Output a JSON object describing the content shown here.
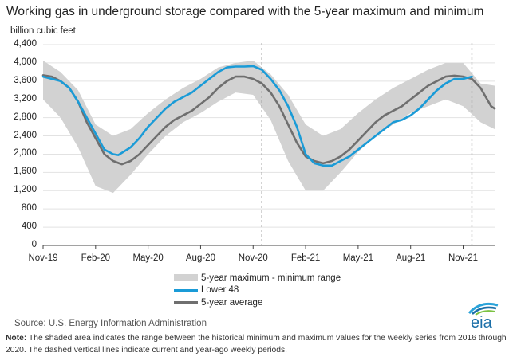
{
  "title": "Working gas in underground  storage compared with the 5-year maximum and minimum",
  "unit_label": "billion cubic feet",
  "source": "Source:  U.S. Energy Information Administration",
  "note_label": "Note:",
  "note_text": " The shaded area indicates the range between the historical minimum and maximum values for the weekly series from 2016 through 2020. The dashed vertical lines indicate current and year-ago weekly periods.",
  "logo_text": "eia",
  "colors": {
    "range": "#d2d2d2",
    "lower48": "#1a9bd7",
    "average": "#6f6f6f",
    "dashed": "#999999"
  },
  "legend": [
    {
      "label": "5-year maximum - minimum range"
    },
    {
      "label": "Lower 48"
    },
    {
      "label": "5-year average"
    }
  ],
  "chart_data": {
    "type": "area",
    "xlabel": "",
    "ylabel": "billion cubic feet",
    "ylim": [
      0,
      4400
    ],
    "yticks": [
      "4,400",
      "4,000",
      "3,600",
      "3,200",
      "2,800",
      "2,400",
      "2,000",
      "1,600",
      "1,200",
      "800",
      "400",
      "0"
    ],
    "xticks": [
      "Nov-19",
      "Feb-20",
      "May-20",
      "Aug-20",
      "Nov-20",
      "Feb-21",
      "May-21",
      "Aug-21",
      "Nov-21"
    ],
    "x_months_index": "0 = Nov-19, 24 = Nov-21",
    "dashed_lines_x": [
      12.5,
      24.5
    ],
    "range_upper": [
      [
        0,
        4050
      ],
      [
        1,
        3800
      ],
      [
        2,
        3400
      ],
      [
        3,
        2650
      ],
      [
        4,
        2400
      ],
      [
        5,
        2550
      ],
      [
        6,
        2900
      ],
      [
        7,
        3200
      ],
      [
        8,
        3450
      ],
      [
        9,
        3650
      ],
      [
        10,
        3900
      ],
      [
        11,
        4000
      ],
      [
        12,
        4050
      ],
      [
        13,
        3750
      ],
      [
        14,
        3300
      ],
      [
        15,
        2650
      ],
      [
        16,
        2400
      ],
      [
        17,
        2550
      ],
      [
        18,
        2900
      ],
      [
        19,
        3200
      ],
      [
        20,
        3450
      ],
      [
        21,
        3650
      ],
      [
        22,
        3850
      ],
      [
        23,
        4000
      ],
      [
        24,
        4000
      ],
      [
        25,
        3550
      ],
      [
        25.8,
        3500
      ]
    ],
    "range_lower": [
      [
        0,
        3200
      ],
      [
        1,
        2800
      ],
      [
        2,
        2150
      ],
      [
        3,
        1300
      ],
      [
        4,
        1150
      ],
      [
        5,
        1550
      ],
      [
        6,
        2000
      ],
      [
        7,
        2400
      ],
      [
        8,
        2700
      ],
      [
        9,
        2900
      ],
      [
        10,
        3150
      ],
      [
        11,
        3350
      ],
      [
        12,
        3300
      ],
      [
        13,
        2750
      ],
      [
        14,
        1850
      ],
      [
        15,
        1200
      ],
      [
        16,
        1200
      ],
      [
        17,
        1600
      ],
      [
        18,
        2050
      ],
      [
        19,
        2400
      ],
      [
        20,
        2650
      ],
      [
        21,
        2900
      ],
      [
        22,
        3050
      ],
      [
        23,
        3200
      ],
      [
        24,
        3050
      ],
      [
        25,
        2700
      ],
      [
        25.8,
        2550
      ]
    ],
    "series": [
      {
        "name": "Lower 48",
        "values": [
          [
            0,
            3700
          ],
          [
            0.5,
            3650
          ],
          [
            1,
            3600
          ],
          [
            1.5,
            3450
          ],
          [
            2,
            3150
          ],
          [
            2.5,
            2800
          ],
          [
            3,
            2450
          ],
          [
            3.5,
            2100
          ],
          [
            4,
            2000
          ],
          [
            4.3,
            1980
          ],
          [
            5,
            2150
          ],
          [
            5.5,
            2350
          ],
          [
            6,
            2600
          ],
          [
            6.5,
            2800
          ],
          [
            7,
            3000
          ],
          [
            7.5,
            3150
          ],
          [
            8,
            3250
          ],
          [
            8.5,
            3350
          ],
          [
            9,
            3500
          ],
          [
            9.5,
            3650
          ],
          [
            10,
            3800
          ],
          [
            10.5,
            3900
          ],
          [
            11,
            3920
          ],
          [
            11.5,
            3920
          ],
          [
            12,
            3930
          ],
          [
            12.5,
            3850
          ],
          [
            13,
            3650
          ],
          [
            13.5,
            3400
          ],
          [
            14,
            3050
          ],
          [
            14.5,
            2600
          ],
          [
            15,
            2000
          ],
          [
            15.5,
            1800
          ],
          [
            16,
            1750
          ],
          [
            16.5,
            1750
          ],
          [
            17,
            1850
          ],
          [
            17.5,
            1950
          ],
          [
            18,
            2100
          ],
          [
            18.5,
            2250
          ],
          [
            19,
            2400
          ],
          [
            19.5,
            2550
          ],
          [
            20,
            2700
          ],
          [
            20.5,
            2750
          ],
          [
            21,
            2850
          ],
          [
            21.5,
            3000
          ],
          [
            22,
            3200
          ],
          [
            22.5,
            3400
          ],
          [
            23,
            3550
          ],
          [
            23.5,
            3650
          ],
          [
            24,
            3650
          ],
          [
            24.5,
            3700
          ]
        ]
      },
      {
        "name": "5-year average",
        "values": [
          [
            0,
            3730
          ],
          [
            0.5,
            3700
          ],
          [
            1,
            3600
          ],
          [
            1.5,
            3450
          ],
          [
            2,
            3150
          ],
          [
            2.5,
            2700
          ],
          [
            3,
            2350
          ],
          [
            3.5,
            2000
          ],
          [
            4,
            1850
          ],
          [
            4.5,
            1780
          ],
          [
            5,
            1850
          ],
          [
            5.5,
            2000
          ],
          [
            6,
            2200
          ],
          [
            6.5,
            2400
          ],
          [
            7,
            2600
          ],
          [
            7.5,
            2750
          ],
          [
            8,
            2850
          ],
          [
            8.5,
            2950
          ],
          [
            9,
            3100
          ],
          [
            9.5,
            3250
          ],
          [
            10,
            3450
          ],
          [
            10.5,
            3600
          ],
          [
            11,
            3700
          ],
          [
            11.5,
            3700
          ],
          [
            12,
            3650
          ],
          [
            12.5,
            3550
          ],
          [
            13,
            3350
          ],
          [
            13.5,
            3050
          ],
          [
            14,
            2650
          ],
          [
            14.5,
            2250
          ],
          [
            15,
            1950
          ],
          [
            15.5,
            1850
          ],
          [
            16,
            1800
          ],
          [
            16.5,
            1850
          ],
          [
            17,
            1950
          ],
          [
            17.5,
            2100
          ],
          [
            18,
            2300
          ],
          [
            18.5,
            2500
          ],
          [
            19,
            2700
          ],
          [
            19.5,
            2850
          ],
          [
            20,
            2950
          ],
          [
            20.5,
            3050
          ],
          [
            21,
            3200
          ],
          [
            21.5,
            3350
          ],
          [
            22,
            3500
          ],
          [
            22.5,
            3600
          ],
          [
            23,
            3700
          ],
          [
            23.5,
            3720
          ],
          [
            24,
            3700
          ],
          [
            24.5,
            3650
          ],
          [
            25,
            3450
          ],
          [
            25.3,
            3250
          ],
          [
            25.6,
            3050
          ],
          [
            25.8,
            3000
          ]
        ]
      }
    ]
  }
}
